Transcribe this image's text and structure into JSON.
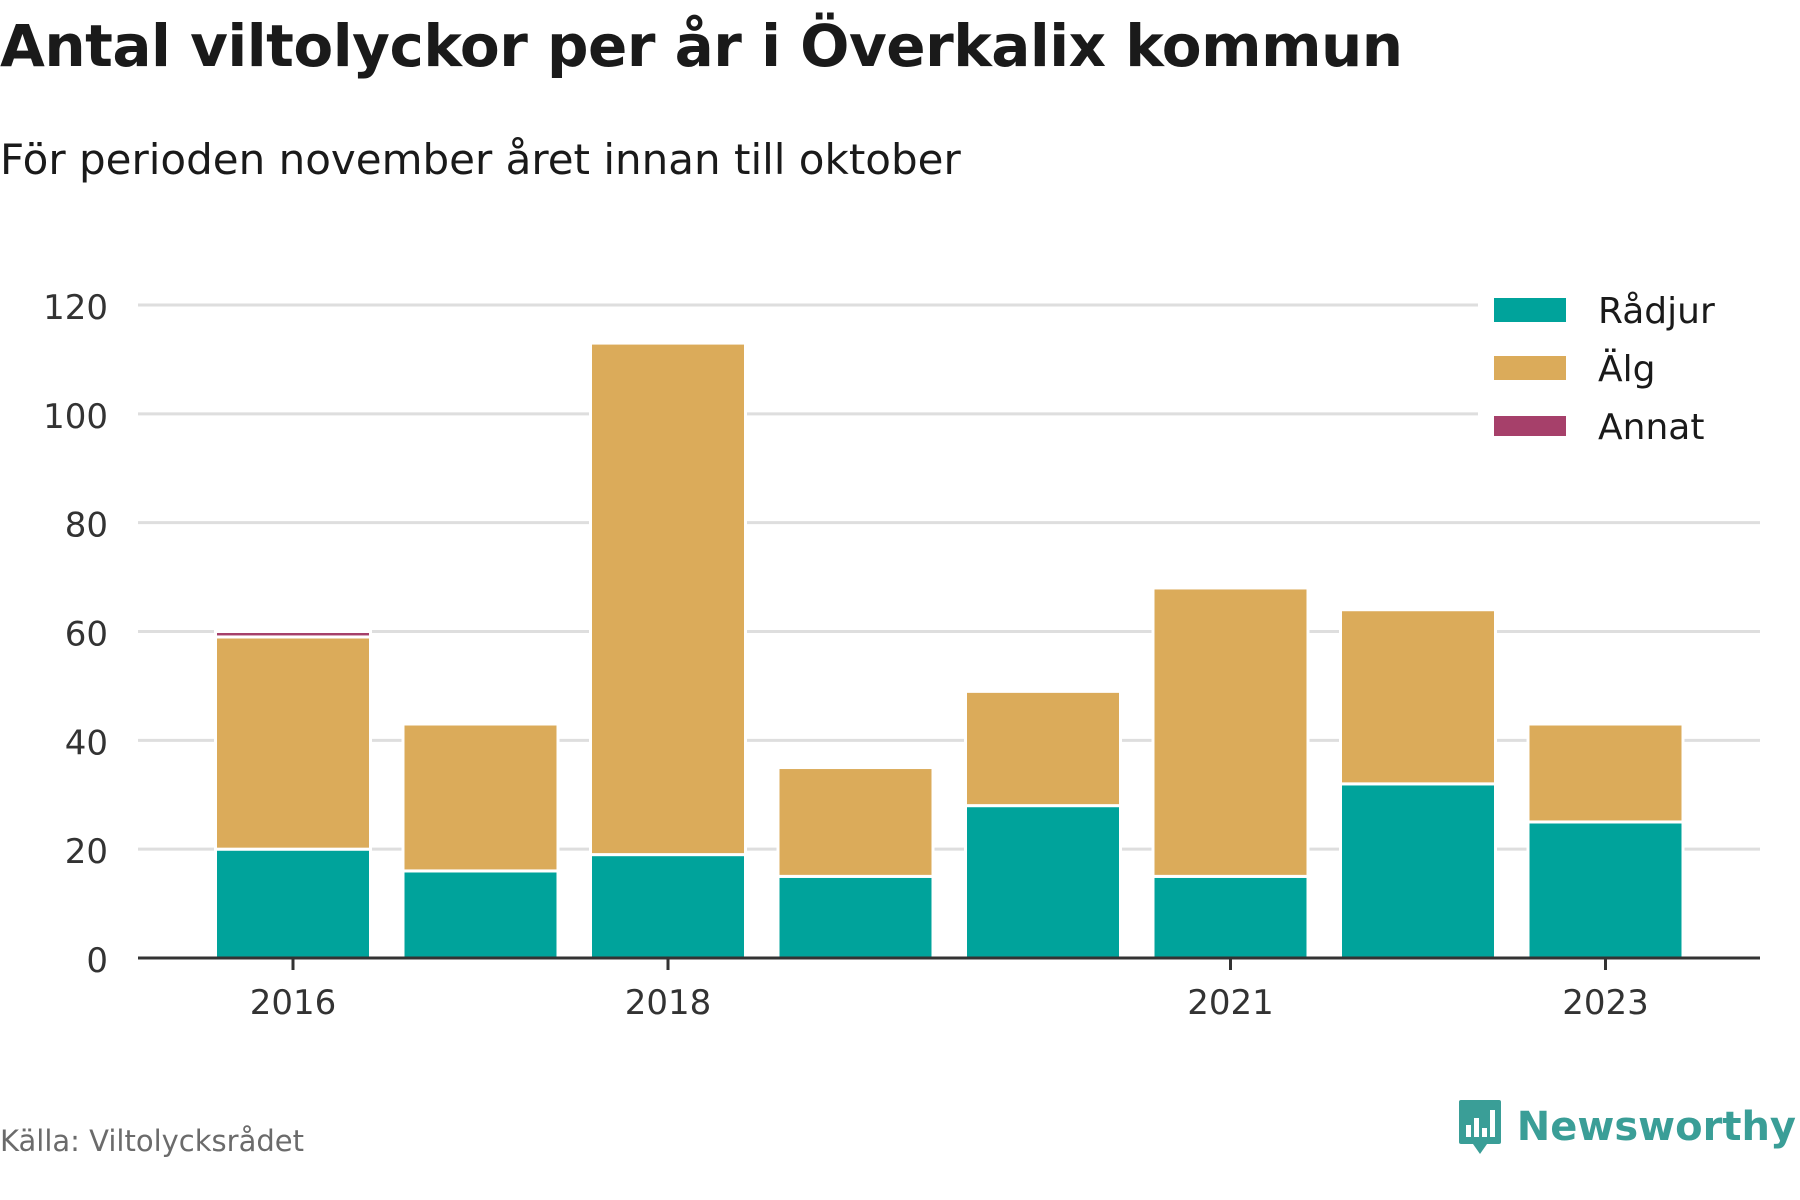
{
  "header": {
    "title": "Antal viltolyckor per år i Överkalix kommun",
    "subtitle": "För perioden november året innan till oktober"
  },
  "footer": {
    "source": "Källa: Viltolycksrådet",
    "brand": "Newsworthy",
    "brand_icon": "newsworthy-logo-icon"
  },
  "colors": {
    "Rådjur": "#00a39b",
    "Älg": "#dbab5a",
    "Annat": "#a6406a",
    "grid": "#dedede",
    "axis": "#333333",
    "brand": "#3a9e97"
  },
  "chart_data": {
    "type": "bar",
    "stacked": true,
    "categories": [
      "2016",
      "2017",
      "2018",
      "2019",
      "2020",
      "2021",
      "2022",
      "2023"
    ],
    "x_tick_labels": [
      "2016",
      "2018",
      "2021",
      "2023"
    ],
    "series": [
      {
        "name": "Rådjur",
        "values": [
          20,
          16,
          19,
          15,
          28,
          15,
          32,
          25
        ]
      },
      {
        "name": "Älg",
        "values": [
          39,
          27,
          94,
          20,
          21,
          53,
          32,
          18
        ]
      },
      {
        "name": "Annat",
        "values": [
          1,
          0,
          0,
          0,
          0,
          0,
          0,
          0
        ]
      }
    ],
    "y_ticks": [
      0,
      20,
      40,
      60,
      80,
      100,
      120
    ],
    "ylim": [
      0,
      120
    ],
    "grid": true,
    "legend_position": "top-right"
  }
}
